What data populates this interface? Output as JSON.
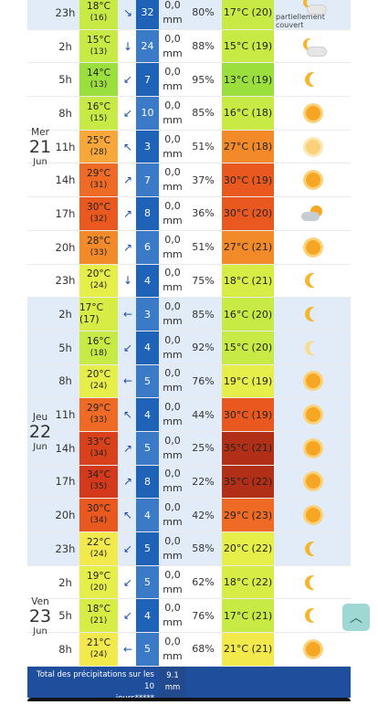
{
  "days": [
    {
      "name": "Mer",
      "num": "21",
      "month": "Jun",
      "first_row": 1,
      "row_count": 7
    },
    {
      "name": "Jeu",
      "num": "22",
      "month": "Jun",
      "first_row": 9,
      "row_count": 8
    },
    {
      "name": "Ven",
      "num": "23",
      "month": "Jun",
      "first_row": 17,
      "row_count": 3
    }
  ],
  "rows": [
    {
      "hour": "23h",
      "temp": "18°C",
      "feel": "(16)",
      "wind_dir": "↘",
      "wind_speed": "32",
      "rain_value": "0,0",
      "rain_unit": "mm",
      "humidity": "80%",
      "feels_like": "17°C (20)",
      "temp_color": "#c7ea45",
      "feels_color": "#c7ea45",
      "sky": "partly-cloudy-night",
      "sky_label": "partiellement couvert",
      "band": "blue"
    },
    {
      "hour": "2h",
      "temp": "15°C",
      "feel": "(13)",
      "wind_dir": "↓",
      "wind_speed": "24",
      "rain_value": "0,0",
      "rain_unit": "mm",
      "humidity": "88%",
      "feels_like": "15°C (19)",
      "temp_color": "#c7ea45",
      "feels_color": "#c7ea45",
      "sky": "cloudy-moon",
      "sky_label": "",
      "band": "white"
    },
    {
      "hour": "5h",
      "temp": "14°C",
      "feel": "(13)",
      "wind_dir": "↙",
      "wind_speed": "7",
      "rain_value": "0,0",
      "rain_unit": "mm",
      "humidity": "95%",
      "feels_like": "13°C (19)",
      "temp_color": "#9bdf3f",
      "feels_color": "#9bdf3f",
      "sky": "moon",
      "sky_label": "",
      "band": "white"
    },
    {
      "hour": "8h",
      "temp": "16°C",
      "feel": "(15)",
      "wind_dir": "↙",
      "wind_speed": "10",
      "rain_value": "0,0",
      "rain_unit": "mm",
      "humidity": "85%",
      "feels_like": "16°C (18)",
      "temp_color": "#c7ea45",
      "feels_color": "#c7ea45",
      "sky": "sun",
      "sky_label": "",
      "band": "white"
    },
    {
      "hour": "11h",
      "temp": "25°C",
      "feel": "(28)",
      "wind_dir": "↖",
      "wind_speed": "3",
      "rain_value": "0,0",
      "rain_unit": "mm",
      "humidity": "51%",
      "feels_like": "27°C (18)",
      "temp_color": "#f8a83b",
      "feels_color": "#f28a2a",
      "sky": "sun-pale",
      "sky_label": "",
      "band": "white"
    },
    {
      "hour": "14h",
      "temp": "29°C",
      "feel": "(31)",
      "wind_dir": "↗",
      "wind_speed": "7",
      "rain_value": "0,0",
      "rain_unit": "mm",
      "humidity": "37%",
      "feels_like": "30°C (19)",
      "temp_color": "#ef6a25",
      "feels_color": "#e9581f",
      "sky": "sun",
      "sky_label": "",
      "band": "white"
    },
    {
      "hour": "17h",
      "temp": "30°C",
      "feel": "(32)",
      "wind_dir": "↗",
      "wind_speed": "8",
      "rain_value": "0,0",
      "rain_unit": "mm",
      "humidity": "36%",
      "feels_like": "30°C (20)",
      "temp_color": "#e9581f",
      "feels_color": "#e9581f",
      "sky": "sun-cloud",
      "sky_label": "",
      "band": "white"
    },
    {
      "hour": "20h",
      "temp": "28°C",
      "feel": "(33)",
      "wind_dir": "↗",
      "wind_speed": "6",
      "rain_value": "0,0",
      "rain_unit": "mm",
      "humidity": "51%",
      "feels_like": "27°C (21)",
      "temp_color": "#f28a2a",
      "feels_color": "#f28a2a",
      "sky": "sun",
      "sky_label": "",
      "band": "white"
    },
    {
      "hour": "23h",
      "temp": "20°C",
      "feel": "(24)",
      "wind_dir": "↓",
      "wind_speed": "4",
      "rain_value": "0,0",
      "rain_unit": "mm",
      "humidity": "75%",
      "feels_like": "18°C (21)",
      "temp_color": "#e6ee4a",
      "feels_color": "#d8ec46",
      "sky": "moon",
      "sky_label": "",
      "band": "white"
    },
    {
      "hour": "2h",
      "temp": "17°C (17)",
      "feel": "",
      "wind_dir": "←",
      "wind_speed": "3",
      "rain_value": "0,0",
      "rain_unit": "mm",
      "humidity": "85%",
      "feels_like": "16°C (20)",
      "temp_color": "#d8ec46",
      "feels_color": "#c7ea45",
      "sky": "moon",
      "sky_label": "",
      "band": "blue"
    },
    {
      "hour": "5h",
      "temp": "16°C",
      "feel": "(18)",
      "wind_dir": "↙",
      "wind_speed": "4",
      "rain_value": "0,0",
      "rain_unit": "mm",
      "humidity": "92%",
      "feels_like": "15°C (20)",
      "temp_color": "#c7ea45",
      "feels_color": "#c7ea45",
      "sky": "moon-pale",
      "sky_label": "",
      "band": "blue"
    },
    {
      "hour": "8h",
      "temp": "20°C",
      "feel": "(24)",
      "wind_dir": "←",
      "wind_speed": "5",
      "rain_value": "0,0",
      "rain_unit": "mm",
      "humidity": "76%",
      "feels_like": "19°C (19)",
      "temp_color": "#e6ee4a",
      "feels_color": "#e6ee4a",
      "sky": "sun",
      "sky_label": "",
      "band": "blue"
    },
    {
      "hour": "11h",
      "temp": "29°C",
      "feel": "(33)",
      "wind_dir": "↖",
      "wind_speed": "4",
      "rain_value": "0,0",
      "rain_unit": "mm",
      "humidity": "44%",
      "feels_like": "30°C (19)",
      "temp_color": "#ef6a25",
      "feels_color": "#e9581f",
      "sky": "sun",
      "sky_label": "",
      "band": "blue"
    },
    {
      "hour": "14h",
      "temp": "33°C",
      "feel": "(34)",
      "wind_dir": "↗",
      "wind_speed": "5",
      "rain_value": "0,0",
      "rain_unit": "mm",
      "humidity": "25%",
      "feels_like": "35°C (21)",
      "temp_color": "#d9401c",
      "feels_color": "#b22f17",
      "sky": "sun",
      "sky_label": "",
      "band": "blue"
    },
    {
      "hour": "17h",
      "temp": "34°C",
      "feel": "(35)",
      "wind_dir": "↗",
      "wind_speed": "8",
      "rain_value": "0,0",
      "rain_unit": "mm",
      "humidity": "22%",
      "feels_like": "35°C (22)",
      "temp_color": "#d3391a",
      "feels_color": "#b22f17",
      "sky": "sun",
      "sky_label": "",
      "band": "blue"
    },
    {
      "hour": "20h",
      "temp": "30°C",
      "feel": "(34)",
      "wind_dir": "↖",
      "wind_speed": "4",
      "rain_value": "0,0",
      "rain_unit": "mm",
      "humidity": "42%",
      "feels_like": "29°C (23)",
      "temp_color": "#e9581f",
      "feels_color": "#ef6a25",
      "sky": "sun",
      "sky_label": "",
      "band": "blue"
    },
    {
      "hour": "23h",
      "temp": "22°C",
      "feel": "(24)",
      "wind_dir": "↙",
      "wind_speed": "5",
      "rain_value": "0,0",
      "rain_unit": "mm",
      "humidity": "58%",
      "feels_like": "20°C (22)",
      "temp_color": "#f2ea4c",
      "feels_color": "#e6ee4a",
      "sky": "moon",
      "sky_label": "",
      "band": "blue"
    },
    {
      "hour": "2h",
      "temp": "19°C",
      "feel": "(20)",
      "wind_dir": "↙",
      "wind_speed": "5",
      "rain_value": "0,0",
      "rain_unit": "mm",
      "humidity": "62%",
      "feels_like": "18°C (22)",
      "temp_color": "#e6ee4a",
      "feels_color": "#d8ec46",
      "sky": "moon",
      "sky_label": "",
      "band": "white"
    },
    {
      "hour": "5h",
      "temp": "18°C",
      "feel": "(21)",
      "wind_dir": "↙",
      "wind_speed": "4",
      "rain_value": "0,0",
      "rain_unit": "mm",
      "humidity": "76%",
      "feels_like": "17°C (21)",
      "temp_color": "#d8ec46",
      "feels_color": "#c7ea45",
      "sky": "moon",
      "sky_label": "",
      "band": "white"
    },
    {
      "hour": "8h",
      "temp": "21°C",
      "feel": "(24)",
      "wind_dir": "←",
      "wind_speed": "5",
      "rain_value": "0,0",
      "rain_unit": "mm",
      "humidity": "68%",
      "feels_like": "21°C (21)",
      "temp_color": "#f2ea4c",
      "feels_color": "#f2ea4c",
      "sky": "sun",
      "sky_label": "",
      "band": "white"
    }
  ],
  "footer": {
    "label_line1": "Total des précipitations sur les 10",
    "label_line2": "jours*****",
    "value": "9.1",
    "unit": "mm"
  },
  "scroll_top": {
    "icon": "chevron-up-icon",
    "glyph": "︿"
  }
}
